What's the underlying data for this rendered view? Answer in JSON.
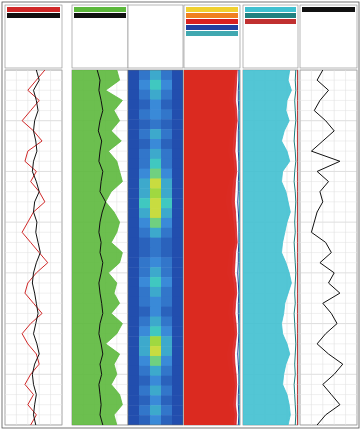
{
  "chart_data": {
    "type": "well_log",
    "ylim": [
      0,
      35
    ],
    "yticks": [
      0,
      1,
      2,
      3,
      4,
      5,
      6,
      7,
      8,
      9,
      10,
      11,
      12,
      13,
      14,
      15,
      16,
      17,
      18,
      19,
      20,
      21,
      22,
      23,
      24,
      25,
      26,
      27,
      28,
      29,
      30,
      31,
      32,
      33,
      34,
      35
    ],
    "grid": true,
    "tick_labels": false,
    "depth": [
      0,
      1,
      2,
      3,
      4,
      5,
      6,
      7,
      8,
      9,
      10,
      11,
      12,
      13,
      14,
      15,
      16,
      17,
      18,
      19,
      20,
      21,
      22,
      23,
      24,
      25,
      26,
      27,
      28,
      29,
      30,
      31,
      32,
      33,
      34,
      35
    ],
    "tracks": [
      {
        "xlim": [
          0,
          100
        ],
        "series": [
          {
            "type": "line",
            "color": "#d02828",
            "values": [
              70,
              55,
              40,
              60,
              45,
              30,
              50,
              65,
              40,
              35,
              55,
              45,
              60,
              70,
              50,
              40,
              30,
              45,
              60,
              75,
              55,
              40,
              35,
              50,
              65,
              45,
              30,
              40,
              55,
              60,
              45,
              35,
              50,
              40,
              55,
              45
            ]
          },
          {
            "type": "line",
            "color": "#111111",
            "values": [
              55,
              60,
              50,
              55,
              58,
              52,
              50,
              54,
              56,
              50,
              48,
              55,
              60,
              52,
              50,
              56,
              54,
              58,
              62,
              55,
              50,
              48,
              52,
              55,
              58,
              54,
              50,
              56,
              60,
              52,
              48,
              50,
              55,
              52,
              50,
              54
            ]
          }
        ]
      },
      {
        "xlim": [
          0,
          100
        ],
        "series": [
          {
            "type": "area",
            "color": "#5cb83c",
            "values": [
              80,
              85,
              60,
              90,
              75,
              85,
              70,
              88,
              65,
              80,
              85,
              90,
              70,
              60,
              75,
              85,
              80,
              70,
              90,
              85,
              65,
              80,
              75,
              85,
              70,
              90,
              80,
              60,
              85,
              75,
              80,
              70,
              85,
              90,
              75,
              80
            ]
          },
          {
            "type": "line",
            "color": "#111111",
            "values": [
              45,
              50,
              48,
              52,
              55,
              50,
              47,
              53,
              50,
              48,
              55,
              52,
              50,
              60,
              54,
              50,
              48,
              52,
              50,
              55,
              52,
              48,
              50,
              53,
              55,
              50,
              48,
              52,
              55,
              50,
              53,
              48,
              50,
              52,
              50,
              55
            ]
          }
        ]
      },
      {
        "xlim": [
          100,
          0
        ],
        "series": [
          {
            "type": "area",
            "color": "#f0d030",
            "values": [
              12,
              15,
              18,
              20,
              16,
              14,
              17,
              20,
              22,
              18,
              15,
              20,
              24,
              26,
              22,
              18,
              16,
              14,
              20,
              22,
              24,
              18,
              15,
              20,
              22,
              18,
              16,
              20,
              24,
              22,
              18,
              15,
              17,
              20,
              16,
              18
            ]
          },
          {
            "type": "area",
            "color": "#f08020",
            "values": [
              8,
              10,
              12,
              13,
              10,
              9,
              11,
              13,
              14,
              12,
              10,
              13,
              15,
              16,
              14,
              12,
              10,
              9,
              13,
              14,
              15,
              12,
              10,
              13,
              14,
              12,
              10,
              13,
              15,
              14,
              12,
              10,
              11,
              13,
              10,
              12
            ]
          },
          {
            "type": "area",
            "color": "#d82020",
            "values": [
              5,
              6,
              7,
              8,
              6,
              5,
              7,
              8,
              9,
              7,
              6,
              8,
              9,
              10,
              8,
              7,
              6,
              5,
              8,
              9,
              10,
              7,
              6,
              8,
              9,
              7,
              6,
              8,
              10,
              9,
              7,
              6,
              7,
              8,
              6,
              7
            ]
          },
          {
            "type": "line",
            "color": "#2040a0",
            "values": [
              2,
              2,
              3,
              3,
              2,
              2,
              3,
              3,
              3,
              2,
              2,
              3,
              3,
              4,
              3,
              2,
              2,
              2,
              3,
              3,
              4,
              3,
              2,
              3,
              3,
              2,
              2,
              3,
              4,
              3,
              2,
              2,
              3,
              3,
              2,
              3
            ]
          },
          {
            "type": "line",
            "color": "#40a8b0",
            "values": [
              1,
              1,
              1,
              1,
              1,
              1,
              1,
              1,
              1,
              1,
              1,
              1,
              1,
              1,
              1,
              1,
              1,
              1,
              1,
              1,
              1,
              1,
              1,
              1,
              1,
              1,
              1,
              1,
              1,
              1,
              1,
              1,
              1,
              1,
              1,
              1
            ]
          }
        ]
      },
      {
        "xlim": [
          100,
          0
        ],
        "series": [
          {
            "type": "area",
            "color": "#40c0d0",
            "values": [
              15,
              18,
              12,
              20,
              22,
              16,
              25,
              30,
              20,
              15,
              28,
              30,
              22,
              18,
              14,
              20,
              24,
              28,
              30,
              22,
              16,
              12,
              18,
              24,
              26,
              30,
              28,
              20,
              15,
              22,
              26,
              28,
              20,
              16,
              14,
              18
            ]
          },
          {
            "type": "line",
            "color": "#208080",
            "values": [
              4,
              5,
              4,
              6,
              5,
              4,
              6,
              7,
              5,
              4,
              6,
              7,
              5,
              4,
              5,
              6,
              5,
              7,
              6,
              5,
              4,
              5,
              6,
              5,
              7,
              6,
              5,
              4,
              5,
              6,
              5,
              7,
              6,
              5,
              4,
              5
            ]
          },
          {
            "type": "line",
            "color": "#c03030",
            "values": [
              1,
              1,
              1,
              1,
              1,
              1,
              1,
              1,
              1,
              1,
              1,
              1,
              1,
              1,
              1,
              1,
              1,
              1,
              1,
              1,
              1,
              1,
              1,
              1,
              1,
              1,
              1,
              1,
              1,
              1,
              1,
              1,
              1,
              1,
              1,
              1
            ]
          }
        ]
      },
      {
        "xlim": [
          0,
          100
        ],
        "series": [
          {
            "type": "line",
            "color": "#111111",
            "values": [
              40,
              30,
              50,
              35,
              25,
              45,
              60,
              40,
              20,
              70,
              30,
              50,
              35,
              40,
              30,
              25,
              20,
              45,
              55,
              35,
              60,
              50,
              70,
              40,
              55,
              65,
              45,
              30,
              50,
              75,
              60,
              40,
              55,
              70,
              45,
              30
            ]
          }
        ]
      }
    ],
    "heatmap": {
      "zlim": [
        0,
        1
      ],
      "cells": [
        [
          0.1,
          0.3,
          0.5,
          0.3,
          0.1
        ],
        [
          0.1,
          0.4,
          0.6,
          0.4,
          0.1
        ],
        [
          0.1,
          0.3,
          0.5,
          0.3,
          0.1
        ],
        [
          0.1,
          0.2,
          0.4,
          0.2,
          0.1
        ],
        [
          0.1,
          0.3,
          0.4,
          0.3,
          0.1
        ],
        [
          0.1,
          0.2,
          0.3,
          0.2,
          0.1
        ],
        [
          0.1,
          0.3,
          0.5,
          0.3,
          0.1
        ],
        [
          0.1,
          0.2,
          0.4,
          0.2,
          0.1
        ],
        [
          0.1,
          0.3,
          0.5,
          0.3,
          0.1
        ],
        [
          0.1,
          0.3,
          0.6,
          0.3,
          0.1
        ],
        [
          0.1,
          0.4,
          0.7,
          0.4,
          0.1
        ],
        [
          0.1,
          0.5,
          0.9,
          0.5,
          0.1
        ],
        [
          0.1,
          0.5,
          0.8,
          0.5,
          0.1
        ],
        [
          0.1,
          0.6,
          0.9,
          0.6,
          0.1
        ],
        [
          0.1,
          0.5,
          0.9,
          0.5,
          0.1
        ],
        [
          0.1,
          0.4,
          0.7,
          0.4,
          0.1
        ],
        [
          0.1,
          0.3,
          0.5,
          0.3,
          0.1
        ],
        [
          0.1,
          0.2,
          0.3,
          0.2,
          0.1
        ],
        [
          0.1,
          0.2,
          0.3,
          0.2,
          0.1
        ],
        [
          0.1,
          0.3,
          0.4,
          0.3,
          0.1
        ],
        [
          0.1,
          0.3,
          0.5,
          0.3,
          0.1
        ],
        [
          0.1,
          0.4,
          0.6,
          0.4,
          0.1
        ],
        [
          0.1,
          0.3,
          0.5,
          0.3,
          0.1
        ],
        [
          0.1,
          0.3,
          0.4,
          0.3,
          0.1
        ],
        [
          0.1,
          0.2,
          0.4,
          0.2,
          0.1
        ],
        [
          0.1,
          0.3,
          0.5,
          0.3,
          0.1
        ],
        [
          0.1,
          0.4,
          0.6,
          0.4,
          0.1
        ],
        [
          0.1,
          0.5,
          0.8,
          0.5,
          0.1
        ],
        [
          0.1,
          0.5,
          0.9,
          0.5,
          0.1
        ],
        [
          0.1,
          0.4,
          0.7,
          0.4,
          0.1
        ],
        [
          0.1,
          0.3,
          0.5,
          0.3,
          0.1
        ],
        [
          0.1,
          0.2,
          0.4,
          0.2,
          0.1
        ],
        [
          0.1,
          0.3,
          0.5,
          0.3,
          0.1
        ],
        [
          0.1,
          0.2,
          0.4,
          0.2,
          0.1
        ],
        [
          0.1,
          0.3,
          0.5,
          0.3,
          0.1
        ],
        [
          0.1,
          0.2,
          0.4,
          0.2,
          0.1
        ]
      ]
    }
  }
}
